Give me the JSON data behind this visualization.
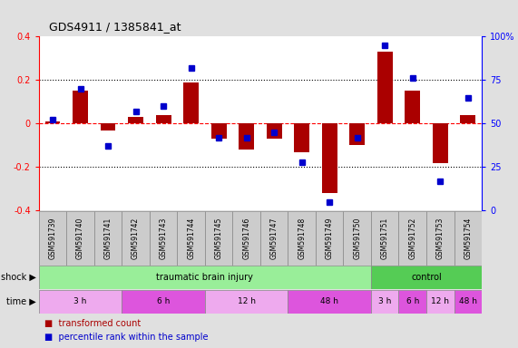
{
  "title": "GDS4911 / 1385841_at",
  "samples": [
    "GSM591739",
    "GSM591740",
    "GSM591741",
    "GSM591742",
    "GSM591743",
    "GSM591744",
    "GSM591745",
    "GSM591746",
    "GSM591747",
    "GSM591748",
    "GSM591749",
    "GSM591750",
    "GSM591751",
    "GSM591752",
    "GSM591753",
    "GSM591754"
  ],
  "bar_values": [
    0.01,
    0.15,
    -0.03,
    0.03,
    0.04,
    0.19,
    -0.07,
    -0.12,
    -0.07,
    -0.13,
    -0.32,
    -0.1,
    0.33,
    0.15,
    -0.18,
    0.04
  ],
  "dot_values": [
    52,
    70,
    37,
    57,
    60,
    82,
    42,
    42,
    45,
    28,
    5,
    42,
    95,
    76,
    17,
    65
  ],
  "bar_color": "#aa0000",
  "dot_color": "#0000cc",
  "ylim_left": [
    -0.4,
    0.4
  ],
  "ylim_right": [
    0,
    100
  ],
  "yticks_left": [
    -0.4,
    -0.2,
    0.0,
    0.2,
    0.4
  ],
  "yticks_right": [
    0,
    25,
    50,
    75,
    100
  ],
  "yticklabels_right": [
    "0",
    "25",
    "50",
    "75",
    "100%"
  ],
  "hline_dotted": [
    0.2,
    -0.2
  ],
  "shock_label": "shock",
  "time_label": "time",
  "shock_groups": [
    {
      "label": "traumatic brain injury",
      "start": 0,
      "end": 11,
      "color": "#99ee99"
    },
    {
      "label": "control",
      "start": 12,
      "end": 15,
      "color": "#55cc55"
    }
  ],
  "time_groups": [
    {
      "label": "3 h",
      "start": 0,
      "end": 2,
      "color": "#eeaaee"
    },
    {
      "label": "6 h",
      "start": 3,
      "end": 5,
      "color": "#dd55dd"
    },
    {
      "label": "12 h",
      "start": 6,
      "end": 8,
      "color": "#eeaaee"
    },
    {
      "label": "48 h",
      "start": 9,
      "end": 11,
      "color": "#dd55dd"
    },
    {
      "label": "3 h",
      "start": 12,
      "end": 12,
      "color": "#eeaaee"
    },
    {
      "label": "6 h",
      "start": 13,
      "end": 13,
      "color": "#dd55dd"
    },
    {
      "label": "12 h",
      "start": 14,
      "end": 14,
      "color": "#eeaaee"
    },
    {
      "label": "48 h",
      "start": 15,
      "end": 15,
      "color": "#dd55dd"
    }
  ],
  "legend_bar_label": "transformed count",
  "legend_dot_label": "percentile rank within the sample",
  "bg_color": "#e0e0e0",
  "plot_bg_color": "#ffffff",
  "sample_box_color": "#cccccc"
}
